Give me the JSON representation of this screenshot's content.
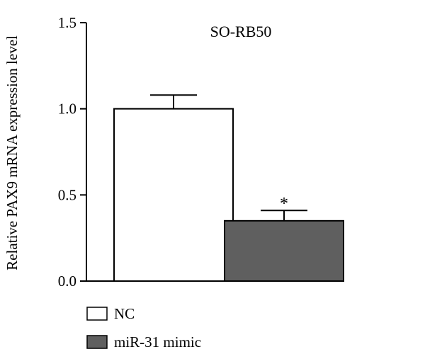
{
  "chart_data": {
    "type": "bar",
    "title": "SO-RB50",
    "xlabel": "",
    "ylabel": "Relative PAX9 mRNA expression level",
    "ylim": [
      0,
      1.5
    ],
    "yticks": [
      "0.0",
      "0.5",
      "1.0",
      "1.5"
    ],
    "categories": [
      "NC",
      "miR-31 mimic"
    ],
    "values": [
      1.0,
      0.35
    ],
    "errors": [
      0.08,
      0.06
    ],
    "bar_colors": [
      "#ffffff",
      "#5f5f5f"
    ],
    "annotations": [
      {
        "category": "miR-31 mimic",
        "text": "*"
      }
    ],
    "legend": {
      "placement": "bottom-left",
      "entries": [
        {
          "label": "NC",
          "color": "#ffffff"
        },
        {
          "label": "miR-31 mimic",
          "color": "#5f5f5f"
        }
      ]
    },
    "grid": false
  }
}
